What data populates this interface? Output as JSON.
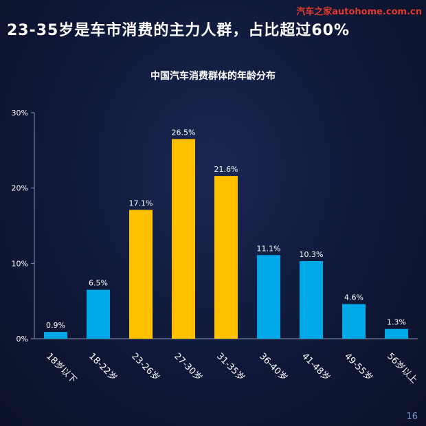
{
  "slide": {
    "headline": "23-35岁是车市消费的主力人群，占比超过60%",
    "watermark": "汽车之家autohome.com.cn",
    "page_number": "16"
  },
  "colors": {
    "primary_bar": "#00a8e8",
    "highlight_bar": "#ffc000",
    "axis": "#8a94b8",
    "background": "#0f1838"
  },
  "chart_data": {
    "type": "bar",
    "title": "中国汽车消费群体的年龄分布",
    "xlabel": "",
    "ylabel": "",
    "categories": [
      "18岁以下",
      "18-22岁",
      "23-26岁",
      "27-30岁",
      "31-35岁",
      "36-40岁",
      "41-48岁",
      "49-55岁",
      "56岁以上"
    ],
    "values": [
      0.9,
      6.5,
      17.1,
      26.5,
      21.6,
      11.1,
      10.3,
      4.6,
      1.3
    ],
    "value_labels": [
      "0.9%",
      "6.5%",
      "17.1%",
      "26.5%",
      "21.6%",
      "11.1%",
      "10.3%",
      "4.6%",
      "1.3%"
    ],
    "highlighted": [
      false,
      false,
      true,
      true,
      true,
      false,
      false,
      false,
      false
    ],
    "ylim": [
      0,
      30
    ],
    "yticks": [
      0,
      10,
      20,
      30
    ],
    "ytick_labels": [
      "0%",
      "10%",
      "20%",
      "30%"
    ],
    "grid": false,
    "legend": "none"
  }
}
